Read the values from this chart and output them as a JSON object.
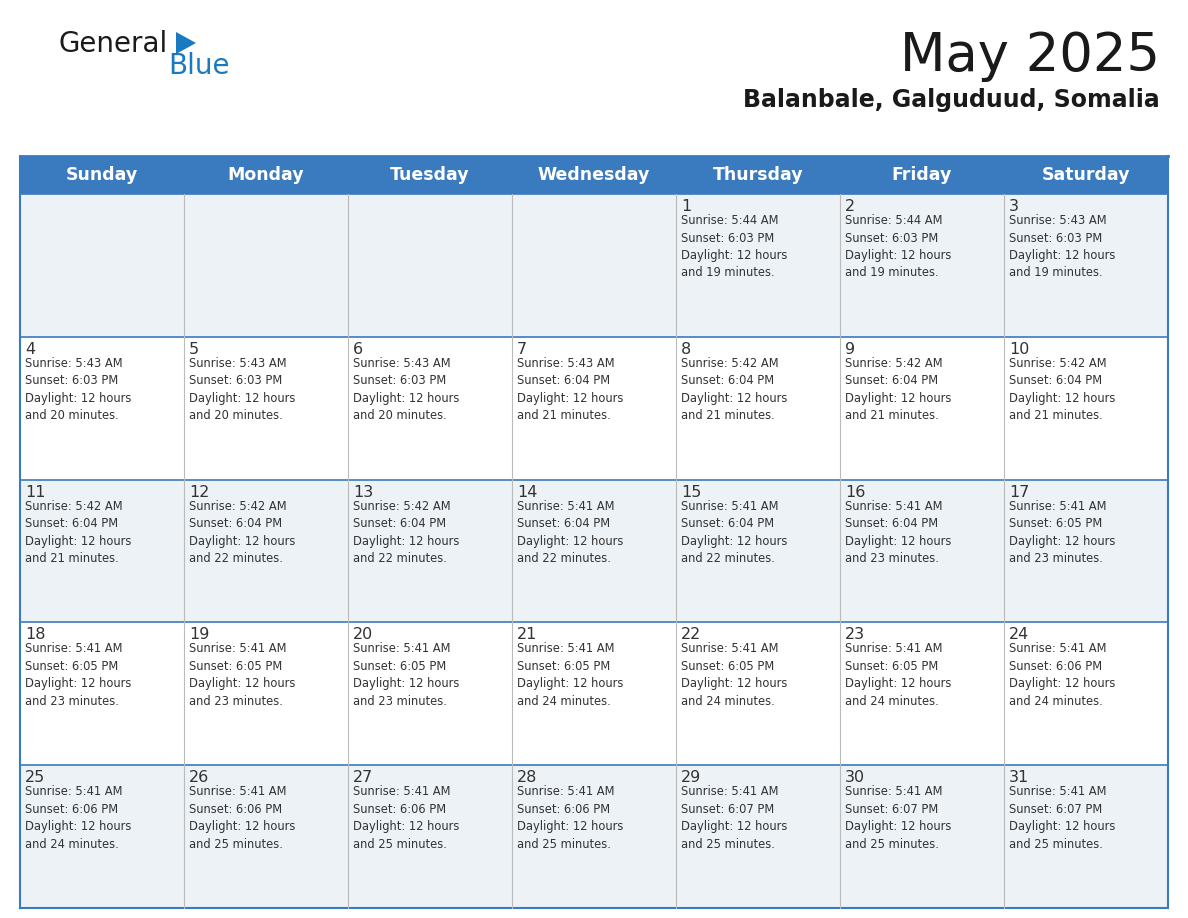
{
  "title": "May 2025",
  "subtitle": "Balanbale, Galguduud, Somalia",
  "days_of_week": [
    "Sunday",
    "Monday",
    "Tuesday",
    "Wednesday",
    "Thursday",
    "Friday",
    "Saturday"
  ],
  "header_bg": "#3a7abf",
  "header_text": "#ffffff",
  "row_bg_even": "#edf2f7",
  "row_bg_odd": "#ffffff",
  "border_color": "#3a7abf",
  "text_color": "#333333",
  "day_num_color": "#333333",
  "calendar_data": [
    [
      {
        "day": "",
        "info": ""
      },
      {
        "day": "",
        "info": ""
      },
      {
        "day": "",
        "info": ""
      },
      {
        "day": "",
        "info": ""
      },
      {
        "day": "1",
        "info": "Sunrise: 5:44 AM\nSunset: 6:03 PM\nDaylight: 12 hours\nand 19 minutes."
      },
      {
        "day": "2",
        "info": "Sunrise: 5:44 AM\nSunset: 6:03 PM\nDaylight: 12 hours\nand 19 minutes."
      },
      {
        "day": "3",
        "info": "Sunrise: 5:43 AM\nSunset: 6:03 PM\nDaylight: 12 hours\nand 19 minutes."
      }
    ],
    [
      {
        "day": "4",
        "info": "Sunrise: 5:43 AM\nSunset: 6:03 PM\nDaylight: 12 hours\nand 20 minutes."
      },
      {
        "day": "5",
        "info": "Sunrise: 5:43 AM\nSunset: 6:03 PM\nDaylight: 12 hours\nand 20 minutes."
      },
      {
        "day": "6",
        "info": "Sunrise: 5:43 AM\nSunset: 6:03 PM\nDaylight: 12 hours\nand 20 minutes."
      },
      {
        "day": "7",
        "info": "Sunrise: 5:43 AM\nSunset: 6:04 PM\nDaylight: 12 hours\nand 21 minutes."
      },
      {
        "day": "8",
        "info": "Sunrise: 5:42 AM\nSunset: 6:04 PM\nDaylight: 12 hours\nand 21 minutes."
      },
      {
        "day": "9",
        "info": "Sunrise: 5:42 AM\nSunset: 6:04 PM\nDaylight: 12 hours\nand 21 minutes."
      },
      {
        "day": "10",
        "info": "Sunrise: 5:42 AM\nSunset: 6:04 PM\nDaylight: 12 hours\nand 21 minutes."
      }
    ],
    [
      {
        "day": "11",
        "info": "Sunrise: 5:42 AM\nSunset: 6:04 PM\nDaylight: 12 hours\nand 21 minutes."
      },
      {
        "day": "12",
        "info": "Sunrise: 5:42 AM\nSunset: 6:04 PM\nDaylight: 12 hours\nand 22 minutes."
      },
      {
        "day": "13",
        "info": "Sunrise: 5:42 AM\nSunset: 6:04 PM\nDaylight: 12 hours\nand 22 minutes."
      },
      {
        "day": "14",
        "info": "Sunrise: 5:41 AM\nSunset: 6:04 PM\nDaylight: 12 hours\nand 22 minutes."
      },
      {
        "day": "15",
        "info": "Sunrise: 5:41 AM\nSunset: 6:04 PM\nDaylight: 12 hours\nand 22 minutes."
      },
      {
        "day": "16",
        "info": "Sunrise: 5:41 AM\nSunset: 6:04 PM\nDaylight: 12 hours\nand 23 minutes."
      },
      {
        "day": "17",
        "info": "Sunrise: 5:41 AM\nSunset: 6:05 PM\nDaylight: 12 hours\nand 23 minutes."
      }
    ],
    [
      {
        "day": "18",
        "info": "Sunrise: 5:41 AM\nSunset: 6:05 PM\nDaylight: 12 hours\nand 23 minutes."
      },
      {
        "day": "19",
        "info": "Sunrise: 5:41 AM\nSunset: 6:05 PM\nDaylight: 12 hours\nand 23 minutes."
      },
      {
        "day": "20",
        "info": "Sunrise: 5:41 AM\nSunset: 6:05 PM\nDaylight: 12 hours\nand 23 minutes."
      },
      {
        "day": "21",
        "info": "Sunrise: 5:41 AM\nSunset: 6:05 PM\nDaylight: 12 hours\nand 24 minutes."
      },
      {
        "day": "22",
        "info": "Sunrise: 5:41 AM\nSunset: 6:05 PM\nDaylight: 12 hours\nand 24 minutes."
      },
      {
        "day": "23",
        "info": "Sunrise: 5:41 AM\nSunset: 6:05 PM\nDaylight: 12 hours\nand 24 minutes."
      },
      {
        "day": "24",
        "info": "Sunrise: 5:41 AM\nSunset: 6:06 PM\nDaylight: 12 hours\nand 24 minutes."
      }
    ],
    [
      {
        "day": "25",
        "info": "Sunrise: 5:41 AM\nSunset: 6:06 PM\nDaylight: 12 hours\nand 24 minutes."
      },
      {
        "day": "26",
        "info": "Sunrise: 5:41 AM\nSunset: 6:06 PM\nDaylight: 12 hours\nand 25 minutes."
      },
      {
        "day": "27",
        "info": "Sunrise: 5:41 AM\nSunset: 6:06 PM\nDaylight: 12 hours\nand 25 minutes."
      },
      {
        "day": "28",
        "info": "Sunrise: 5:41 AM\nSunset: 6:06 PM\nDaylight: 12 hours\nand 25 minutes."
      },
      {
        "day": "29",
        "info": "Sunrise: 5:41 AM\nSunset: 6:07 PM\nDaylight: 12 hours\nand 25 minutes."
      },
      {
        "day": "30",
        "info": "Sunrise: 5:41 AM\nSunset: 6:07 PM\nDaylight: 12 hours\nand 25 minutes."
      },
      {
        "day": "31",
        "info": "Sunrise: 5:41 AM\nSunset: 6:07 PM\nDaylight: 12 hours\nand 25 minutes."
      }
    ]
  ],
  "logo_general_color": "#1a1a1a",
  "logo_blue_color": "#1a7abf",
  "logo_triangle_color": "#1a7abf",
  "fig_width": 11.88,
  "fig_height": 9.18,
  "dpi": 100
}
